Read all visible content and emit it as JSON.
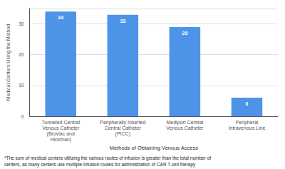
{
  "chart_data": {
    "type": "bar",
    "categories": [
      "Tunneled Central\nVenous Catheter\n(Broviac and\nHickman)",
      "Peripherally Inserted\nCentral Catheter\n(PICC)",
      "Mediport Central\nVenous Catheter",
      "Peripheral\nIntravenous Line"
    ],
    "values": [
      34,
      33,
      29,
      6
    ],
    "color": "#4D94E8",
    "ylabel": "Medical Centers Using the Method",
    "xlabel": "Methods of Obtaining Venous Access",
    "annotations": [
      "*The sum of medical centers utilizing the various routes of infusion is greater than the total number of",
      "centers, as many centers use multiple infusion routes for administration of CAR T-cell therapy"
    ],
    "ylim": [
      0,
      35
    ],
    "yticks": [
      0,
      10,
      20,
      30
    ],
    "grid": true,
    "data_labels": true
  }
}
